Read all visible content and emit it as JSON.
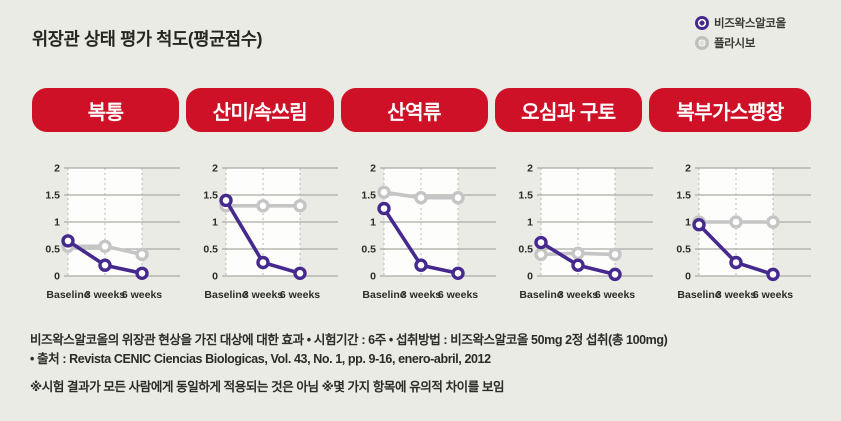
{
  "title": "위장관 상태 평가 척도(평균점수)",
  "legend": {
    "items": [
      {
        "label": "비즈왁스알코올",
        "color": "#46298e"
      },
      {
        "label": "플라시보",
        "color": "#c5c5c5"
      }
    ]
  },
  "colors": {
    "background": "#e9ebe4",
    "pill_red": "#ce1126",
    "treatment_purple": "#46298e",
    "placebo_gray": "#c5c5c5",
    "grid_line": "#a9aca4",
    "plot_background": "#fdfdfb",
    "text": "#2b2b28"
  },
  "chart_data": [
    {
      "type": "line",
      "title": "복통",
      "categories": [
        "Baseline",
        "3 weeks",
        "6 weeks"
      ],
      "ylim": [
        0,
        2
      ],
      "yticks": [
        2,
        1.5,
        1,
        0.5,
        0
      ],
      "grid": true,
      "series": [
        {
          "name": "비즈왁스알코올",
          "color": "#46298e",
          "values": [
            0.65,
            0.2,
            0.05
          ]
        },
        {
          "name": "플라시보",
          "color": "#c5c5c5",
          "values": [
            0.55,
            0.55,
            0.4
          ]
        }
      ]
    },
    {
      "type": "line",
      "title": "산미/속쓰림",
      "categories": [
        "Baseline",
        "3 weeks",
        "6 weeks"
      ],
      "ylim": [
        0,
        2
      ],
      "yticks": [
        2,
        1.5,
        1,
        0.5,
        0
      ],
      "grid": true,
      "series": [
        {
          "name": "비즈왁스알코올",
          "color": "#46298e",
          "values": [
            1.4,
            0.25,
            0.05
          ]
        },
        {
          "name": "플라시보",
          "color": "#c5c5c5",
          "values": [
            1.3,
            1.3,
            1.3
          ]
        }
      ]
    },
    {
      "type": "line",
      "title": "산역류",
      "categories": [
        "Baseline",
        "3 weeks",
        "6 weeks"
      ],
      "ylim": [
        0,
        2
      ],
      "yticks": [
        2,
        1.5,
        1,
        0.5,
        0
      ],
      "grid": true,
      "series": [
        {
          "name": "비즈왁스알코올",
          "color": "#46298e",
          "values": [
            1.25,
            0.2,
            0.05
          ]
        },
        {
          "name": "플라시보",
          "color": "#c5c5c5",
          "values": [
            1.55,
            1.45,
            1.45
          ]
        }
      ]
    },
    {
      "type": "line",
      "title": "오심과 구토",
      "categories": [
        "Baseline",
        "3 weeks",
        "6 weeks"
      ],
      "ylim": [
        0,
        2
      ],
      "yticks": [
        2,
        1.5,
        1,
        0.5,
        0
      ],
      "grid": true,
      "series": [
        {
          "name": "비즈왁스알코올",
          "color": "#46298e",
          "values": [
            0.62,
            0.2,
            0.03
          ]
        },
        {
          "name": "플라시보",
          "color": "#c5c5c5",
          "values": [
            0.4,
            0.42,
            0.4
          ]
        }
      ]
    },
    {
      "type": "line",
      "title": "복부가스팽창",
      "categories": [
        "Baseline",
        "3 weeks",
        "6 weeks"
      ],
      "ylim": [
        0,
        2
      ],
      "yticks": [
        2,
        1.5,
        1,
        0.5,
        0
      ],
      "grid": true,
      "series": [
        {
          "name": "비즈왁스알코올",
          "color": "#46298e",
          "values": [
            0.95,
            0.25,
            0.03
          ]
        },
        {
          "name": "플라시보",
          "color": "#c5c5c5",
          "values": [
            1.0,
            1.0,
            1.0
          ]
        }
      ]
    }
  ],
  "footer": {
    "lines": [
      "비즈왁스알코올의 위장관 현상을 가진 대상에 대한 효과  • 시험기간 : 6주  • 섭취방법 : 비즈왁스알코올 50mg 2정 섭취(총 100mg)",
      "• 출처 : Revista CENIC Ciencias Biologicas, Vol. 43, No. 1, pp. 9-16, enero-abril, 2012",
      "※시험 결과가 모든 사람에게 동일하게 적용되는 것은 아님  ※몇 가지 항목에 유의적 차이를 보임"
    ]
  }
}
